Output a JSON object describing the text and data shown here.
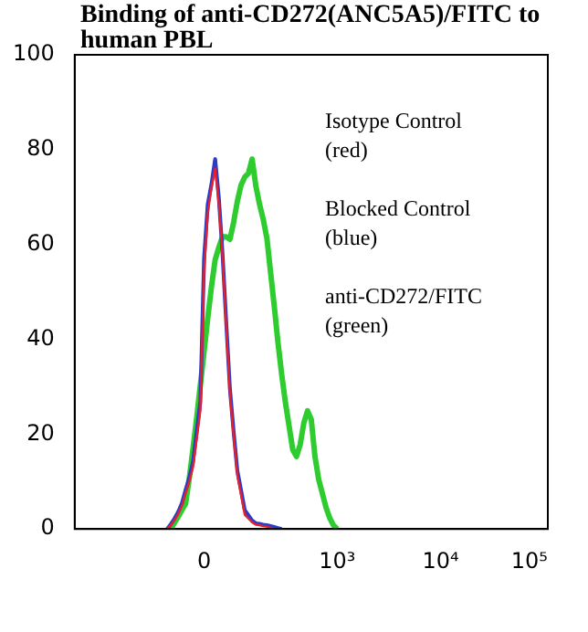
{
  "chart_data": {
    "type": "line",
    "title": "Binding of anti-CD272(ANC5A5)/FITC to human PBL",
    "annotations": [
      "Isotype Control\n(red)",
      "Blocked Control\n(blue)",
      "anti-CD272/FITC\n(green)"
    ],
    "categories": [
      null,
      null,
      null,
      null,
      null,
      null,
      null,
      null,
      null,
      null,
      null,
      null,
      null,
      null,
      null,
      null,
      null,
      null,
      null,
      null,
      null,
      null,
      null,
      null,
      null,
      null,
      null,
      null,
      null,
      null,
      null,
      null,
      null,
      null,
      null,
      "0",
      null,
      null,
      null,
      null,
      null,
      null,
      null,
      null,
      null,
      null,
      null,
      null,
      null,
      null,
      null,
      null,
      null,
      null,
      null,
      null,
      null,
      null,
      null,
      null,
      null,
      null,
      null,
      null,
      null,
      null,
      null,
      null,
      null,
      null,
      null,
      "10³",
      null,
      null,
      null,
      null,
      null,
      null,
      null,
      null,
      null,
      null,
      null,
      null,
      null,
      null,
      null,
      null,
      null,
      null,
      null,
      null,
      null,
      null,
      null,
      null,
      null,
      null,
      null,
      "10⁴",
      null,
      null,
      null,
      null,
      null,
      null,
      null,
      null,
      null,
      null,
      null,
      null,
      null,
      null,
      null,
      null,
      null,
      null,
      null,
      null,
      null,
      null,
      null,
      "10⁵",
      null,
      null,
      null,
      null,
      null
    ],
    "ylim": [
      0,
      100
    ],
    "yticks": [
      0,
      20,
      40,
      60,
      80,
      100
    ],
    "grid": false,
    "legend": false,
    "marker": "none",
    "series": [
      {
        "color": "#e8202a",
        "values": [
          null,
          null,
          null,
          null,
          null,
          null,
          null,
          null,
          null,
          null,
          null,
          null,
          null,
          null,
          null,
          null,
          null,
          null,
          null,
          null,
          null,
          null,
          null,
          null,
          null,
          0,
          0.8,
          1.9,
          3.2,
          4.9,
          7.5,
          10,
          13,
          19,
          25,
          54,
          66.5,
          72,
          76,
          68.5,
          57.4,
          42.5,
          28.5,
          19.5,
          11.3,
          7.2,
          3,
          2.2,
          1.4,
          0.9,
          0.8,
          0.6,
          0.5,
          0.2,
          0,
          null,
          null,
          null,
          null,
          null,
          null,
          null,
          null,
          null,
          null,
          null,
          null,
          null,
          null,
          null,
          null,
          null,
          null,
          null,
          null,
          null,
          null,
          null,
          null,
          null,
          null,
          null,
          null,
          null,
          null,
          null,
          null,
          null,
          null,
          null,
          null,
          null,
          null,
          null,
          null,
          null,
          null,
          null,
          null,
          null,
          null,
          null,
          null,
          null,
          null,
          null,
          null,
          null,
          null,
          null,
          null,
          null,
          null,
          null,
          null,
          null,
          null,
          null,
          null,
          null,
          null,
          null,
          null,
          null,
          null,
          null,
          null,
          null,
          null
        ]
      },
      {
        "color": "#2a3cc8",
        "values": [
          null,
          null,
          null,
          null,
          null,
          null,
          null,
          null,
          null,
          null,
          null,
          null,
          null,
          null,
          null,
          null,
          null,
          null,
          null,
          null,
          null,
          null,
          null,
          null,
          null,
          0,
          1,
          2.2,
          3.6,
          5.4,
          8.2,
          10.8,
          14.1,
          20.5,
          26.9,
          57,
          68.5,
          72.7,
          78,
          69.8,
          58,
          43.5,
          29.5,
          20.5,
          12.3,
          8.2,
          4,
          2.9,
          1.8,
          1.2,
          1.1,
          0.9,
          0.8,
          0.6,
          0.4,
          0.2,
          0,
          null,
          null,
          null,
          null,
          null,
          null,
          null,
          null,
          null,
          null,
          null,
          null,
          null,
          null,
          null,
          null,
          null,
          null,
          null,
          null,
          null,
          null,
          null,
          null,
          null,
          null,
          null,
          null,
          null,
          null,
          null,
          null,
          null,
          null,
          null,
          null,
          null,
          null,
          null,
          null,
          null,
          null,
          null,
          null,
          null,
          null,
          null,
          null,
          null,
          null,
          null,
          null,
          null,
          null,
          null,
          null,
          null,
          null,
          null,
          null,
          null,
          null,
          null,
          null,
          null,
          null,
          null,
          null,
          null,
          null,
          null,
          null
        ]
      },
      {
        "color": "#2ecc2e",
        "values": [
          null,
          null,
          null,
          null,
          null,
          null,
          null,
          null,
          null,
          null,
          null,
          null,
          null,
          null,
          null,
          null,
          null,
          null,
          null,
          null,
          null,
          null,
          null,
          null,
          null,
          null,
          0,
          1.3,
          2.6,
          4,
          5.3,
          10.7,
          16.9,
          23.4,
          30.4,
          37.4,
          44.5,
          51.1,
          56.8,
          59.4,
          61.6,
          61.6,
          61.1,
          64.7,
          69.1,
          72.5,
          74.2,
          75,
          78,
          72.4,
          68.5,
          65.3,
          61.3,
          54.1,
          46.9,
          39.3,
          32.6,
          26.7,
          21.7,
          16.7,
          15.3,
          17.8,
          22.4,
          24.9,
          23.1,
          15.3,
          10.5,
          7.5,
          4.5,
          2.3,
          0.8,
          0,
          null,
          null,
          null,
          null,
          null,
          null,
          null,
          null,
          null,
          null,
          null,
          null,
          null,
          null,
          null,
          null,
          null,
          null,
          null,
          null,
          null,
          null,
          null,
          null,
          null,
          null,
          null,
          null,
          null,
          null,
          null,
          null,
          null,
          null,
          null,
          null,
          null,
          null,
          null,
          null,
          null,
          null,
          null,
          null,
          null,
          null,
          null,
          null,
          null,
          null,
          null,
          null,
          null,
          null,
          null,
          null,
          null
        ]
      }
    ]
  }
}
